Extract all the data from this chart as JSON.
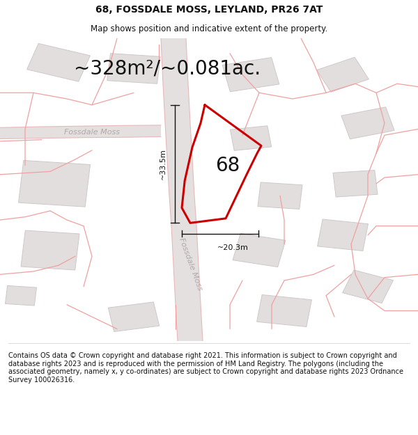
{
  "title": "68, FOSSDALE MOSS, LEYLAND, PR26 7AT",
  "subtitle": "Map shows position and indicative extent of the property.",
  "area_text": "~328m²/~0.081ac.",
  "label_68": "68",
  "dim_vertical": "~33.5m",
  "dim_horizontal": "~20.3m",
  "footer": "Contains OS data © Crown copyright and database right 2021. This information is subject to Crown copyright and database rights 2023 and is reproduced with the permission of HM Land Registry. The polygons (including the associated geometry, namely x, y co-ordinates) are subject to Crown copyright and database rights 2023 Ordnance Survey 100026316.",
  "bg_color": "#ffffff",
  "map_bg": "#f7f6f6",
  "road_color": "#e8e0e0",
  "plot_line_color": "#cc0000",
  "building_fill": "#e2dede",
  "building_edge": "#d0c8c8",
  "cadastral_color": "#f0a0a0",
  "street_label_color": "#b0a8a8",
  "dim_color": "#111111",
  "title_fontsize": 10,
  "subtitle_fontsize": 8.5,
  "area_fontsize": 20,
  "label_fontsize": 20,
  "footer_fontsize": 7,
  "dim_fontsize": 8,
  "street_fontsize": 8,
  "figsize": [
    6.0,
    6.25
  ],
  "dpi": 100
}
